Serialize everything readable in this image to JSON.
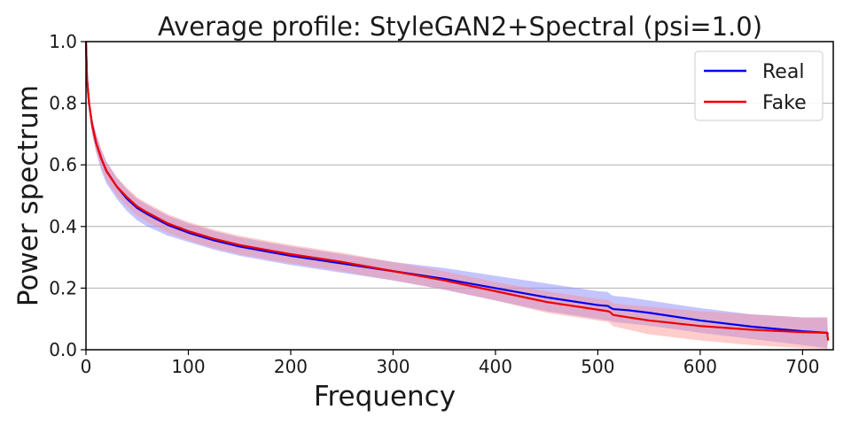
{
  "chart_data": {
    "type": "line",
    "title": "Average profile: StyleGAN2+Spectral (psi=1.0)",
    "xlabel": "Frequency",
    "ylabel": "Power spectrum",
    "xlim": [
      0,
      730
    ],
    "ylim": [
      0,
      1.0
    ],
    "x_ticks": [
      0,
      100,
      200,
      300,
      400,
      500,
      600,
      700
    ],
    "x_tick_labels": [
      "0",
      "100",
      "200",
      "300",
      "400",
      "500",
      "600",
      "700"
    ],
    "y_ticks": [
      0,
      0.2,
      0.4,
      0.6,
      0.8,
      1.0
    ],
    "y_tick_labels": [
      "0.0",
      "0.2",
      "0.4",
      "0.6",
      "0.8",
      "1.0"
    ],
    "grid": "horizontal",
    "legend_position": "top-right",
    "series": [
      {
        "name": "Real",
        "color": "#0000ee",
        "band_color": "#8a8aff",
        "x": [
          0,
          1,
          3,
          6,
          10,
          15,
          20,
          30,
          40,
          50,
          60,
          80,
          100,
          125,
          150,
          175,
          200,
          250,
          300,
          350,
          400,
          450,
          500,
          510,
          512,
          515,
          530,
          550,
          600,
          650,
          700,
          724,
          725
        ],
        "values": [
          1.0,
          0.88,
          0.8,
          0.73,
          0.67,
          0.62,
          0.58,
          0.53,
          0.49,
          0.46,
          0.44,
          0.405,
          0.38,
          0.355,
          0.335,
          0.32,
          0.305,
          0.28,
          0.255,
          0.23,
          0.2,
          0.17,
          0.145,
          0.142,
          0.137,
          0.132,
          0.128,
          0.12,
          0.095,
          0.075,
          0.06,
          0.055,
          0.05
        ],
        "upper": [
          1.0,
          0.9,
          0.82,
          0.75,
          0.7,
          0.65,
          0.61,
          0.56,
          0.52,
          0.49,
          0.47,
          0.435,
          0.41,
          0.385,
          0.365,
          0.35,
          0.335,
          0.31,
          0.285,
          0.265,
          0.24,
          0.215,
          0.19,
          0.188,
          0.18,
          0.175,
          0.17,
          0.16,
          0.135,
          0.115,
          0.105,
          0.105,
          0.05
        ],
        "lower": [
          1.0,
          0.86,
          0.78,
          0.7,
          0.64,
          0.58,
          0.54,
          0.49,
          0.45,
          0.42,
          0.4,
          0.37,
          0.35,
          0.325,
          0.305,
          0.29,
          0.275,
          0.25,
          0.225,
          0.195,
          0.16,
          0.125,
          0.1,
          0.095,
          0.094,
          0.09,
          0.085,
          0.078,
          0.055,
          0.035,
          0.015,
          0.005,
          0.05
        ]
      },
      {
        "name": "Fake",
        "color": "#ee0000",
        "band_color": "#ff8f8f",
        "x": [
          0,
          1,
          3,
          6,
          10,
          15,
          20,
          30,
          40,
          50,
          60,
          80,
          100,
          125,
          150,
          175,
          200,
          250,
          300,
          350,
          400,
          450,
          500,
          510,
          512,
          515,
          530,
          550,
          600,
          650,
          700,
          724,
          725
        ],
        "values": [
          1.0,
          0.88,
          0.8,
          0.73,
          0.67,
          0.62,
          0.58,
          0.53,
          0.495,
          0.465,
          0.445,
          0.41,
          0.385,
          0.36,
          0.34,
          0.325,
          0.31,
          0.285,
          0.255,
          0.225,
          0.19,
          0.155,
          0.13,
          0.125,
          0.122,
          0.113,
          0.105,
          0.095,
          0.077,
          0.065,
          0.057,
          0.055,
          0.03
        ],
        "upper": [
          1.0,
          0.9,
          0.82,
          0.75,
          0.7,
          0.65,
          0.61,
          0.56,
          0.525,
          0.495,
          0.475,
          0.44,
          0.415,
          0.39,
          0.37,
          0.355,
          0.34,
          0.315,
          0.285,
          0.255,
          0.22,
          0.19,
          0.165,
          0.162,
          0.158,
          0.15,
          0.145,
          0.14,
          0.125,
          0.115,
          0.105,
          0.105,
          0.03
        ],
        "lower": [
          1.0,
          0.86,
          0.78,
          0.7,
          0.64,
          0.59,
          0.55,
          0.5,
          0.465,
          0.435,
          0.415,
          0.38,
          0.355,
          0.33,
          0.31,
          0.295,
          0.28,
          0.255,
          0.225,
          0.195,
          0.16,
          0.12,
          0.095,
          0.09,
          0.085,
          0.076,
          0.065,
          0.05,
          0.03,
          0.015,
          0.005,
          0.002,
          0.03
        ]
      }
    ]
  }
}
